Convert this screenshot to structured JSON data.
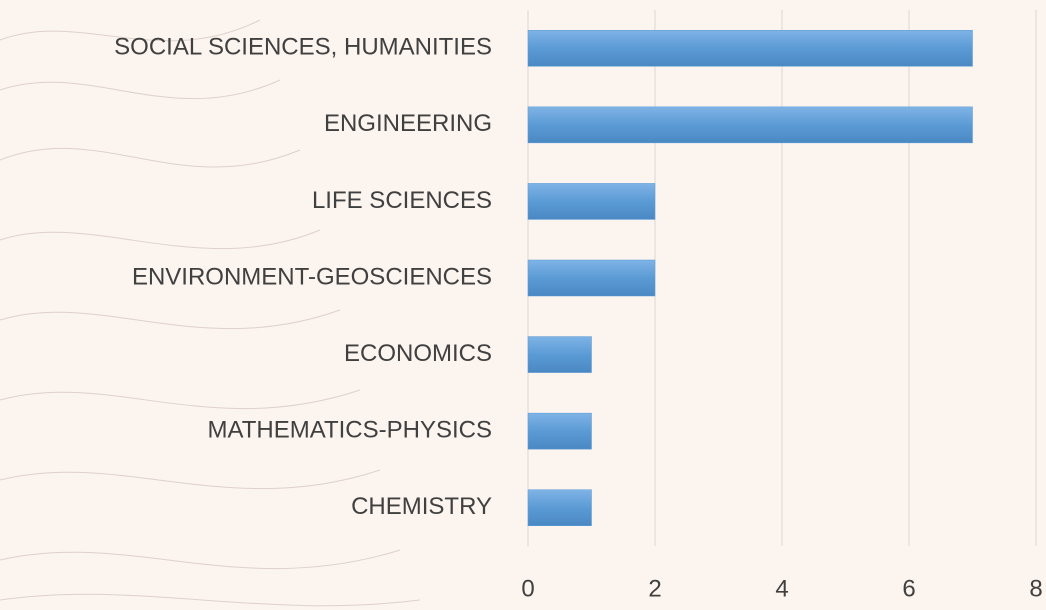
{
  "chart_data": {
    "type": "bar",
    "orientation": "horizontal",
    "categories": [
      "SOCIAL SCIENCES, HUMANITIES",
      "ENGINEERING",
      "LIFE SCIENCES",
      "ENVIRONMENT-GEOSCIENCES",
      "ECONOMICS",
      "MATHEMATICS-PHYSICS",
      "CHEMISTRY"
    ],
    "values": [
      7,
      7,
      2,
      2,
      1,
      1,
      1
    ],
    "color": "#5b9bd5",
    "xlim": [
      0,
      8
    ],
    "xticks": [
      0,
      2,
      4,
      6,
      8
    ],
    "grid": true
  }
}
